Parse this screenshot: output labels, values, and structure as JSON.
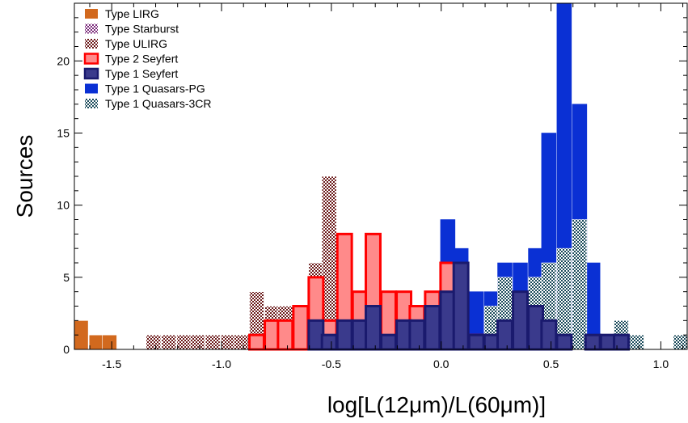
{
  "chart_data": {
    "type": "bar",
    "xlabel": "log[L(12μm)/L(60μm)]",
    "ylabel": "Sources",
    "xlim": [
      -1.67,
      1.12
    ],
    "ylim": [
      0,
      24
    ],
    "xticks": [
      -1.5,
      -1.0,
      -0.5,
      0.0,
      0.5,
      1.0
    ],
    "xtick_labels": [
      "-1.5",
      "-1.0",
      "-0.5",
      "0.0",
      "0.5",
      "1.0"
    ],
    "yticks": [
      0,
      5,
      10,
      15,
      20
    ],
    "ytick_labels": [
      "0",
      "5",
      "10",
      "15",
      "20"
    ],
    "bin_width": 0.066,
    "legend_position": "top-left",
    "series": [
      {
        "name": "Type LIRG",
        "color": "#d2691e",
        "pattern": "solid-orange",
        "bins": [
          {
            "x": -1.64,
            "count": 2
          },
          {
            "x": -1.57,
            "count": 1
          },
          {
            "x": -1.51,
            "count": 1
          }
        ]
      },
      {
        "name": "Type Starburst",
        "color": "#7a2a7a",
        "pattern": "checker-purple",
        "bins": [
          {
            "x": -0.84,
            "count": 1
          },
          {
            "x": -0.44,
            "count": 1
          }
        ]
      },
      {
        "name": "Type ULIRG",
        "color": "#6b1a1a",
        "pattern": "checker-brown",
        "bins": [
          {
            "x": -1.64,
            "count": 1
          },
          {
            "x": -1.31,
            "count": 1
          },
          {
            "x": -1.24,
            "count": 1
          },
          {
            "x": -1.17,
            "count": 1
          },
          {
            "x": -1.11,
            "count": 1
          },
          {
            "x": -1.04,
            "count": 1
          },
          {
            "x": -0.97,
            "count": 1
          },
          {
            "x": -0.91,
            "count": 1
          },
          {
            "x": -0.84,
            "count": 4
          },
          {
            "x": -0.77,
            "count": 3
          },
          {
            "x": -0.71,
            "count": 3
          },
          {
            "x": -0.64,
            "count": 3
          },
          {
            "x": -0.57,
            "count": 6
          },
          {
            "x": -0.51,
            "count": 12
          },
          {
            "x": -0.44,
            "count": 3
          }
        ]
      },
      {
        "name": "Type 2 Seyfert",
        "color": "#ff0000",
        "fill": "#ff8a8a",
        "pattern": "outlined-red",
        "bins": [
          {
            "x": -0.84,
            "count": 1
          },
          {
            "x": -0.77,
            "count": 2
          },
          {
            "x": -0.71,
            "count": 2
          },
          {
            "x": -0.64,
            "count": 3
          },
          {
            "x": -0.57,
            "count": 5
          },
          {
            "x": -0.51,
            "count": 2
          },
          {
            "x": -0.44,
            "count": 8
          },
          {
            "x": -0.37,
            "count": 4
          },
          {
            "x": -0.31,
            "count": 8
          },
          {
            "x": -0.24,
            "count": 4
          },
          {
            "x": -0.17,
            "count": 4
          },
          {
            "x": -0.11,
            "count": 3
          },
          {
            "x": -0.04,
            "count": 4
          },
          {
            "x": 0.03,
            "count": 6
          },
          {
            "x": 0.09,
            "count": 1
          },
          {
            "x": 0.16,
            "count": 1
          }
        ]
      },
      {
        "name": "Type 1 Seyfert",
        "color": "#1a1a6e",
        "fill": "#3a3a8c",
        "pattern": "outlined-navy",
        "bins": [
          {
            "x": -0.57,
            "count": 2
          },
          {
            "x": -0.51,
            "count": 1
          },
          {
            "x": -0.44,
            "count": 2
          },
          {
            "x": -0.37,
            "count": 2
          },
          {
            "x": -0.31,
            "count": 3
          },
          {
            "x": -0.24,
            "count": 1
          },
          {
            "x": -0.17,
            "count": 2
          },
          {
            "x": -0.11,
            "count": 2
          },
          {
            "x": -0.04,
            "count": 3
          },
          {
            "x": 0.03,
            "count": 4
          },
          {
            "x": 0.09,
            "count": 6
          },
          {
            "x": 0.16,
            "count": 1
          },
          {
            "x": 0.23,
            "count": 1
          },
          {
            "x": 0.29,
            "count": 2
          },
          {
            "x": 0.36,
            "count": 4
          },
          {
            "x": 0.43,
            "count": 3
          },
          {
            "x": 0.49,
            "count": 2
          },
          {
            "x": 0.56,
            "count": 1
          },
          {
            "x": 0.69,
            "count": 1
          },
          {
            "x": 0.76,
            "count": 1
          },
          {
            "x": 0.82,
            "count": 1
          }
        ]
      },
      {
        "name": "Type 1 Quasars-PG",
        "color": "#0a30d4",
        "pattern": "solid-blue",
        "bins": [
          {
            "x": 0.03,
            "count": 9
          },
          {
            "x": 0.09,
            "count": 7
          },
          {
            "x": 0.16,
            "count": 4
          },
          {
            "x": 0.23,
            "count": 4
          },
          {
            "x": 0.29,
            "count": 6
          },
          {
            "x": 0.36,
            "count": 6
          },
          {
            "x": 0.43,
            "count": 7
          },
          {
            "x": 0.49,
            "count": 15
          },
          {
            "x": 0.56,
            "count": 24
          },
          {
            "x": 0.63,
            "count": 17
          },
          {
            "x": 0.69,
            "count": 6
          },
          {
            "x": 0.76,
            "count": 1
          }
        ]
      },
      {
        "name": "Type 1 Quasars-3CR",
        "color": "#1a4a5a",
        "pattern": "checker-teal",
        "bins": [
          {
            "x": 0.23,
            "count": 3
          },
          {
            "x": 0.29,
            "count": 5
          },
          {
            "x": 0.36,
            "count": 4
          },
          {
            "x": 0.43,
            "count": 5
          },
          {
            "x": 0.49,
            "count": 6
          },
          {
            "x": 0.56,
            "count": 7
          },
          {
            "x": 0.63,
            "count": 9
          },
          {
            "x": 0.82,
            "count": 2
          },
          {
            "x": 0.89,
            "count": 1
          },
          {
            "x": 1.09,
            "count": 1
          }
        ]
      }
    ]
  }
}
